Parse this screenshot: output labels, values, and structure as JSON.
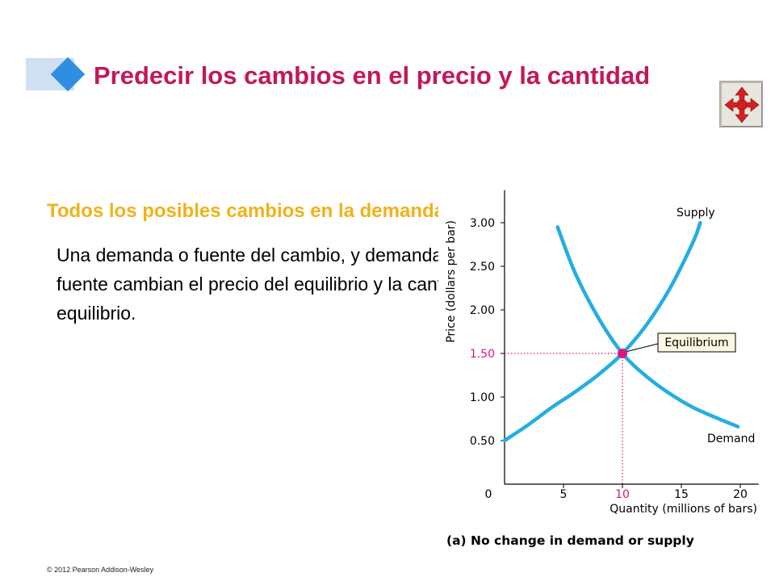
{
  "slide": {
    "title": "Predecir los cambios en el precio y la cantidad",
    "subheading": "Todos los posibles cambios en la demanda y la oferta",
    "body": "Una demanda o fuente del cambio, y demanda o fuente cambian el precio del equilibrio y la cantidad del equilibrio.",
    "footer": "© 2012 Pearson Addison-Wesley",
    "nav_icon": "four-arrows-move-icon"
  },
  "colors": {
    "title": "#c2185b",
    "subheading": "#f0b21a",
    "curve": "#23aee3",
    "equilibrium": "#e0157a",
    "nav_arrows": "#d62020"
  },
  "chart_data": {
    "type": "line",
    "caption": "(a) No change in demand or supply",
    "xlabel": "Quantity (millions of bars)",
    "ylabel": "Price (dollars per bar)",
    "xlim": [
      0,
      21
    ],
    "ylim": [
      0,
      3.3
    ],
    "xticks": [
      {
        "value": 0,
        "label": "0"
      },
      {
        "value": 5,
        "label": "5"
      },
      {
        "value": 10,
        "label": "10"
      },
      {
        "value": 15,
        "label": "15"
      },
      {
        "value": 20,
        "label": "20"
      }
    ],
    "yticks": [
      {
        "value": 0.5,
        "label": "0.50"
      },
      {
        "value": 1.0,
        "label": "1.00"
      },
      {
        "value": 1.5,
        "label": "1.50"
      },
      {
        "value": 2.0,
        "label": "2.00"
      },
      {
        "value": 2.5,
        "label": "2.50"
      },
      {
        "value": 3.0,
        "label": "3.00"
      }
    ],
    "grid": false,
    "series": [
      {
        "name": "Supply",
        "x": [
          0,
          2,
          4,
          6,
          8,
          10,
          12,
          14,
          16,
          16.6
        ],
        "y": [
          0.5,
          0.68,
          0.88,
          1.06,
          1.26,
          1.5,
          1.82,
          2.24,
          2.78,
          3.0
        ]
      },
      {
        "name": "Demand",
        "x": [
          4.5,
          6,
          8,
          10,
          12,
          14,
          16,
          18,
          19.8
        ],
        "y": [
          2.95,
          2.42,
          1.9,
          1.5,
          1.24,
          1.04,
          0.88,
          0.76,
          0.66
        ]
      }
    ],
    "equilibrium": {
      "x": 10,
      "y": 1.5,
      "label": "Equilibrium",
      "price_label": "1.50",
      "quantity_label": "10"
    }
  }
}
